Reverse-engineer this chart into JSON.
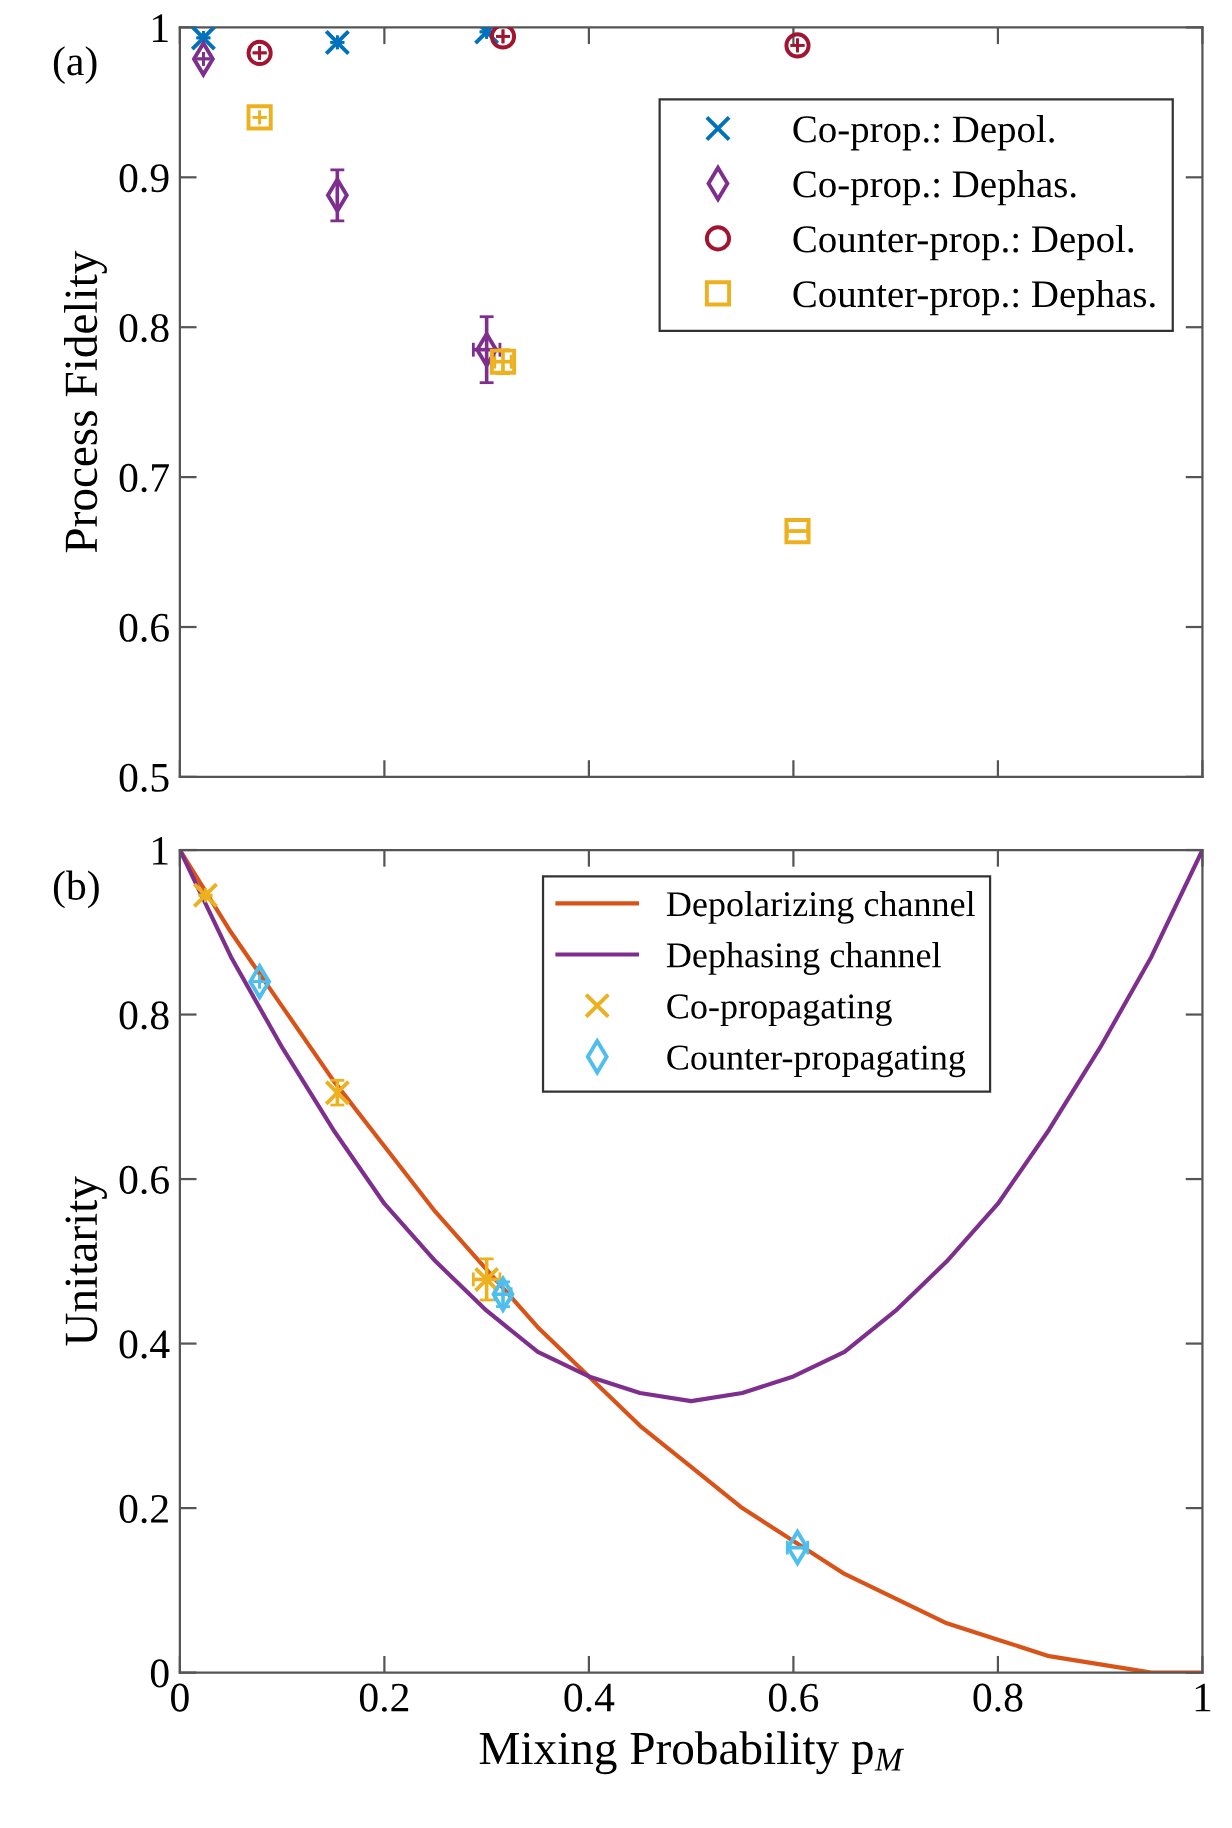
{
  "chart_data": [
    {
      "type": "scatter",
      "ylabel": "Process Fidelity",
      "annotations": [
        "(a)"
      ],
      "xlim": [
        0,
        1
      ],
      "xticks": [
        0,
        0.2,
        0.4,
        0.6,
        0.8,
        1
      ],
      "ylim": [
        0.5,
        1
      ],
      "yticks": [
        0.5,
        0.6,
        0.7,
        0.8,
        0.9,
        1
      ],
      "tick_labels": "y",
      "grid": false,
      "legend": "top right",
      "series": [
        {
          "name": "Co-prop.: Depol.",
          "color": "#0072bd",
          "marker": "cross",
          "x": [
            0.023,
            0.154,
            0.3
          ],
          "values": [
            0.993,
            0.99,
            0.997
          ],
          "errors": [
            null,
            null,
            null
          ],
          "xerrors": [
            null,
            null,
            null
          ]
        },
        {
          "name": "Co-prop.: Dephas.",
          "color": "#7e2f8e",
          "marker": "diamond",
          "x": [
            0.023,
            0.154,
            0.3
          ],
          "values": [
            0.979,
            0.888,
            0.785
          ],
          "errors": [
            null,
            0.017,
            0.022
          ],
          "xerrors": [
            null,
            null,
            0.013
          ]
        },
        {
          "name": "Counter-prop.: Depol.",
          "color": "#a2142f",
          "marker": "circle",
          "x": [
            0.078,
            0.316,
            0.604
          ],
          "values": [
            0.983,
            0.994,
            0.988
          ],
          "errors": [
            null,
            null,
            null
          ],
          "xerrors": [
            null,
            null,
            null
          ]
        },
        {
          "name": "Counter-prop.: Dephas.",
          "color": "#edb120",
          "marker": "square",
          "x": [
            0.078,
            0.316,
            0.604
          ],
          "values": [
            0.94,
            0.777,
            0.664
          ],
          "errors": [
            null,
            0.008,
            null
          ],
          "xerrors": [
            null,
            0.008,
            0.01
          ]
        }
      ]
    },
    {
      "type": "scatter",
      "ylabel": "Unitarity",
      "xlabel": "Mixing Probability p$_{M}$",
      "annotations": [
        "(b)"
      ],
      "xlim": [
        0,
        1
      ],
      "xticks": [
        0,
        0.2,
        0.4,
        0.6,
        0.8,
        1
      ],
      "ylim": [
        0,
        1
      ],
      "yticks": [
        0,
        0.2,
        0.4,
        0.6,
        0.8,
        1
      ],
      "grid": false,
      "legend": "top right",
      "series": [
        {
          "name": "Depolarizing channel",
          "type": "line",
          "color": "#d95319",
          "marker": "none",
          "x": [
            0,
            0.05,
            0.1,
            0.15,
            0.2,
            0.25,
            0.3,
            0.35,
            0.4,
            0.45,
            0.5,
            0.55,
            0.6,
            0.65,
            0.7,
            0.75,
            0.8,
            0.85,
            0.9,
            0.95,
            1
          ],
          "values": [
            1,
            0.9,
            0.81,
            0.72,
            0.64,
            0.56,
            0.49,
            0.42,
            0.36,
            0.3,
            0.25,
            0.2,
            0.16,
            0.12,
            0.09,
            0.06,
            0.04,
            0.02,
            0.01,
            0,
            0
          ]
        },
        {
          "name": "Dephasing channel",
          "type": "line",
          "color": "#7e2f8e",
          "marker": "none",
          "x": [
            0,
            0.05,
            0.1,
            0.15,
            0.2,
            0.25,
            0.3,
            0.35,
            0.4,
            0.45,
            0.5,
            0.55,
            0.6,
            0.65,
            0.7,
            0.75,
            0.8,
            0.85,
            0.9,
            0.95,
            1
          ],
          "values": [
            1,
            0.87,
            0.76,
            0.66,
            0.57,
            0.5,
            0.44,
            0.39,
            0.36,
            0.34,
            0.33,
            0.34,
            0.36,
            0.39,
            0.44,
            0.5,
            0.57,
            0.66,
            0.76,
            0.87,
            1
          ]
        },
        {
          "name": "Co-propagating",
          "color": "#edb120",
          "marker": "cross",
          "x": [
            0.025,
            0.154,
            0.3
          ],
          "values": [
            0.945,
            0.705,
            0.478
          ],
          "errors": [
            null,
            0.015,
            0.025
          ],
          "xerrors": [
            null,
            null,
            0.013
          ]
        },
        {
          "name": "Counter-propagating",
          "color": "#4dbeee",
          "marker": "diamond",
          "x": [
            0.078,
            0.316,
            0.604
          ],
          "values": [
            0.84,
            0.46,
            0.152
          ],
          "errors": [
            null,
            0.015,
            null
          ],
          "xerrors": [
            null,
            0.008,
            0.01
          ]
        }
      ]
    }
  ]
}
